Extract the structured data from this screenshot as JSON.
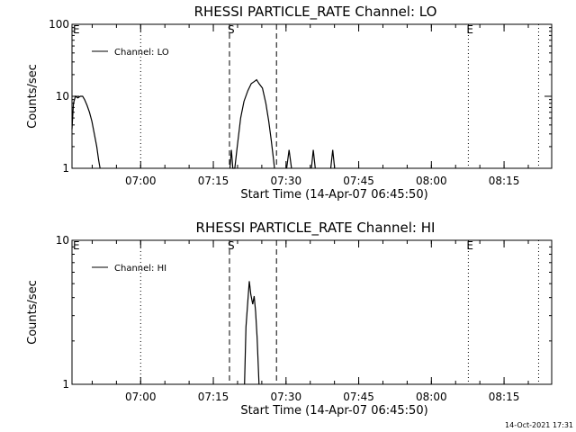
{
  "footer": {
    "timestamp": "14-Oct-2021 17:31"
  },
  "chart_data": [
    {
      "type": "line",
      "title": "RHESSI PARTICLE_RATE Channel: LO",
      "xlabel": "Start Time (14-Apr-07 06:45:50)",
      "ylabel": "Counts/sec",
      "yscale": "log",
      "ylim": [
        1,
        100
      ],
      "xlim_minutes": [
        0,
        99
      ],
      "x_ticks": [
        {
          "label": "07:00",
          "minute": 14.17
        },
        {
          "label": "07:15",
          "minute": 29.17
        },
        {
          "label": "07:30",
          "minute": 44.17
        },
        {
          "label": "07:45",
          "minute": 59.17
        },
        {
          "label": "08:00",
          "minute": 74.17
        },
        {
          "label": "08:15",
          "minute": 89.17
        }
      ],
      "y_ticks": [
        {
          "label": "1",
          "value": 1
        },
        {
          "label": "10",
          "value": 10
        },
        {
          "label": "100",
          "value": 100
        }
      ],
      "legend": "Channel: LO",
      "legend_position": "top-left",
      "markers": [
        {
          "label": "E",
          "minute": 0,
          "style": "dotted"
        },
        {
          "label": "",
          "minute": 14.17,
          "style": "dotted"
        },
        {
          "label": "S",
          "minute": 32.5,
          "style": "dashed"
        },
        {
          "label": "",
          "minute": 42.2,
          "style": "dashed"
        },
        {
          "label": "E",
          "minute": 81.8,
          "style": "dotted"
        },
        {
          "label": "",
          "minute": 96.3,
          "style": "dotted"
        }
      ],
      "series": [
        {
          "name": "Channel: LO",
          "segments": [
            [
              [
                0,
                3.5
              ],
              [
                0.3,
                8
              ],
              [
                0.7,
                10
              ],
              [
                1.2,
                9.5
              ],
              [
                1.7,
                10
              ],
              [
                2.2,
                10
              ],
              [
                2.6,
                9
              ],
              [
                3.1,
                7.5
              ],
              [
                3.6,
                6
              ],
              [
                4.1,
                4.5
              ],
              [
                4.6,
                3
              ],
              [
                5.1,
                2
              ],
              [
                5.5,
                1.3
              ],
              [
                5.8,
                1
              ]
            ],
            [
              [
                32.6,
                1
              ],
              [
                32.9,
                1.8
              ],
              [
                33.2,
                1
              ],
              [
                33.6,
                1
              ],
              [
                34.1,
                2
              ],
              [
                34.8,
                5
              ],
              [
                35.5,
                8.5
              ],
              [
                36.3,
                12
              ],
              [
                37.0,
                15
              ],
              [
                37.6,
                16
              ],
              [
                38.1,
                17
              ],
              [
                38.6,
                15
              ],
              [
                39.3,
                13
              ],
              [
                40.0,
                8
              ],
              [
                40.6,
                4.5
              ],
              [
                41.1,
                2.5
              ],
              [
                41.6,
                1.3
              ],
              [
                41.8,
                1
              ]
            ],
            [
              [
                44.3,
                1
              ],
              [
                44.8,
                1.8
              ],
              [
                45.3,
                1
              ]
            ],
            [
              [
                49.4,
                1
              ],
              [
                49.8,
                1.8
              ],
              [
                50.2,
                1
              ]
            ],
            [
              [
                53.4,
                1
              ],
              [
                53.8,
                1.8
              ],
              [
                54.2,
                1
              ]
            ]
          ]
        }
      ]
    },
    {
      "type": "line",
      "title": "RHESSI PARTICLE_RATE Channel: HI",
      "xlabel": "Start Time (14-Apr-07 06:45:50)",
      "ylabel": "Counts/sec",
      "yscale": "log",
      "ylim": [
        1,
        10
      ],
      "xlim_minutes": [
        0,
        99
      ],
      "x_ticks": [
        {
          "label": "07:00",
          "minute": 14.17
        },
        {
          "label": "07:15",
          "minute": 29.17
        },
        {
          "label": "07:30",
          "minute": 44.17
        },
        {
          "label": "07:45",
          "minute": 59.17
        },
        {
          "label": "08:00",
          "minute": 74.17
        },
        {
          "label": "08:15",
          "minute": 89.17
        }
      ],
      "y_ticks": [
        {
          "label": "1",
          "value": 1
        },
        {
          "label": "10",
          "value": 10
        }
      ],
      "legend": "Channel: HI",
      "legend_position": "top-left",
      "markers": [
        {
          "label": "E",
          "minute": 0,
          "style": "dotted"
        },
        {
          "label": "",
          "minute": 14.17,
          "style": "dotted"
        },
        {
          "label": "S",
          "minute": 32.5,
          "style": "dashed"
        },
        {
          "label": "",
          "minute": 42.2,
          "style": "dashed"
        },
        {
          "label": "E",
          "minute": 81.8,
          "style": "dotted"
        },
        {
          "label": "",
          "minute": 96.3,
          "style": "dotted"
        }
      ],
      "series": [
        {
          "name": "Channel: HI",
          "segments": [
            [
              [
                35.6,
                1
              ],
              [
                35.9,
                2.5
              ],
              [
                36.3,
                3.8
              ],
              [
                36.6,
                5.2
              ],
              [
                36.9,
                4.2
              ],
              [
                37.3,
                3.6
              ],
              [
                37.6,
                4.1
              ],
              [
                37.9,
                3.2
              ],
              [
                38.2,
                2.1
              ],
              [
                38.6,
                1
              ]
            ]
          ]
        }
      ]
    }
  ]
}
